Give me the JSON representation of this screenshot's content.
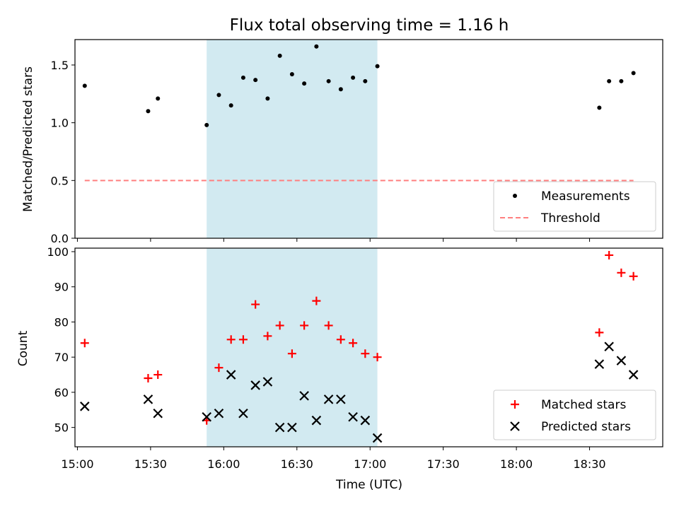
{
  "chart_data": [
    {
      "type": "scatter",
      "title": "Flux total observing time = 1.16 h",
      "xlabel": "",
      "ylabel": "Matched/Predicted stars",
      "ylim": [
        0,
        1.72
      ],
      "yticks": [
        0.0,
        0.5,
        1.0,
        1.5
      ],
      "ytick_labels": [
        "0.0",
        "0.5",
        "1.0",
        "1.5"
      ],
      "highlight_span": [
        "15:53",
        "17:03"
      ],
      "highlight_color": "#add8e6",
      "legend_position": "lower right",
      "series": [
        {
          "name": "Measurements",
          "color": "#000000",
          "marker": "dot",
          "points": [
            {
              "t": "15:03",
              "v": 1.32
            },
            {
              "t": "15:29",
              "v": 1.1
            },
            {
              "t": "15:33",
              "v": 1.21
            },
            {
              "t": "15:53",
              "v": 0.98
            },
            {
              "t": "15:58",
              "v": 1.24
            },
            {
              "t": "16:03",
              "v": 1.15
            },
            {
              "t": "16:08",
              "v": 1.39
            },
            {
              "t": "16:13",
              "v": 1.37
            },
            {
              "t": "16:18",
              "v": 1.21
            },
            {
              "t": "16:23",
              "v": 1.58
            },
            {
              "t": "16:28",
              "v": 1.42
            },
            {
              "t": "16:33",
              "v": 1.34
            },
            {
              "t": "16:38",
              "v": 1.66
            },
            {
              "t": "16:43",
              "v": 1.36
            },
            {
              "t": "16:48",
              "v": 1.29
            },
            {
              "t": "16:53",
              "v": 1.39
            },
            {
              "t": "16:58",
              "v": 1.36
            },
            {
              "t": "17:03",
              "v": 1.49
            },
            {
              "t": "18:34",
              "v": 1.13
            },
            {
              "t": "18:38",
              "v": 1.36
            },
            {
              "t": "18:43",
              "v": 1.36
            },
            {
              "t": "18:48",
              "v": 1.43
            }
          ]
        },
        {
          "name": "Threshold",
          "color": "#ff7f7f",
          "marker": "dashed-line",
          "points": [
            {
              "t": "15:03",
              "v": 0.5
            },
            {
              "t": "18:48",
              "v": 0.5
            }
          ]
        }
      ]
    },
    {
      "type": "scatter",
      "title": "",
      "xlabel": "Time (UTC)",
      "ylabel": "Count",
      "ylim": [
        44.5,
        101
      ],
      "yticks": [
        50,
        60,
        70,
        80,
        90,
        100
      ],
      "ytick_labels": [
        "50",
        "60",
        "70",
        "80",
        "90",
        "100"
      ],
      "xlim": [
        "14:59",
        "19:00"
      ],
      "xticks": [
        "15:00",
        "15:30",
        "16:00",
        "16:30",
        "17:00",
        "17:30",
        "18:00",
        "18:30"
      ],
      "xtick_labels": [
        "15:00",
        "15:30",
        "16:00",
        "16:30",
        "17:00",
        "17:30",
        "18:00",
        "18:30"
      ],
      "highlight_span": [
        "15:53",
        "17:03"
      ],
      "highlight_color": "#add8e6",
      "legend_position": "lower right",
      "series": [
        {
          "name": "Matched stars",
          "color": "#ff0000",
          "marker": "plus",
          "points": [
            {
              "t": "15:03",
              "v": 74
            },
            {
              "t": "15:29",
              "v": 64
            },
            {
              "t": "15:33",
              "v": 65
            },
            {
              "t": "15:53",
              "v": 52
            },
            {
              "t": "15:58",
              "v": 67
            },
            {
              "t": "16:03",
              "v": 75
            },
            {
              "t": "16:08",
              "v": 75
            },
            {
              "t": "16:13",
              "v": 85
            },
            {
              "t": "16:18",
              "v": 76
            },
            {
              "t": "16:23",
              "v": 79
            },
            {
              "t": "16:28",
              "v": 71
            },
            {
              "t": "16:33",
              "v": 79
            },
            {
              "t": "16:38",
              "v": 86
            },
            {
              "t": "16:43",
              "v": 79
            },
            {
              "t": "16:48",
              "v": 75
            },
            {
              "t": "16:53",
              "v": 74
            },
            {
              "t": "16:58",
              "v": 71
            },
            {
              "t": "17:03",
              "v": 70
            },
            {
              "t": "18:34",
              "v": 77
            },
            {
              "t": "18:38",
              "v": 99
            },
            {
              "t": "18:43",
              "v": 94
            },
            {
              "t": "18:48",
              "v": 93
            }
          ]
        },
        {
          "name": "Predicted stars",
          "color": "#000000",
          "marker": "x",
          "points": [
            {
              "t": "15:03",
              "v": 56
            },
            {
              "t": "15:29",
              "v": 58
            },
            {
              "t": "15:33",
              "v": 54
            },
            {
              "t": "15:53",
              "v": 53
            },
            {
              "t": "15:58",
              "v": 54
            },
            {
              "t": "16:03",
              "v": 65
            },
            {
              "t": "16:08",
              "v": 54
            },
            {
              "t": "16:13",
              "v": 62
            },
            {
              "t": "16:18",
              "v": 63
            },
            {
              "t": "16:23",
              "v": 50
            },
            {
              "t": "16:28",
              "v": 50
            },
            {
              "t": "16:33",
              "v": 59
            },
            {
              "t": "16:38",
              "v": 52
            },
            {
              "t": "16:43",
              "v": 58
            },
            {
              "t": "16:48",
              "v": 58
            },
            {
              "t": "16:53",
              "v": 53
            },
            {
              "t": "16:58",
              "v": 52
            },
            {
              "t": "17:03",
              "v": 47
            },
            {
              "t": "18:34",
              "v": 68
            },
            {
              "t": "18:38",
              "v": 73
            },
            {
              "t": "18:43",
              "v": 69
            },
            {
              "t": "18:48",
              "v": 65
            }
          ]
        }
      ]
    }
  ]
}
